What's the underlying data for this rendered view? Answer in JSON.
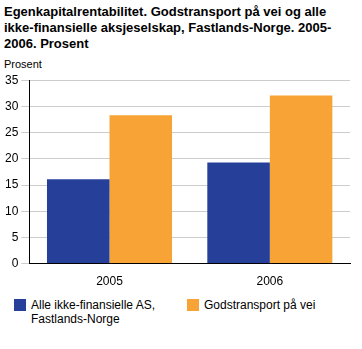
{
  "chart_data": {
    "type": "bar",
    "title": "Egenkapitalrentabilitet. Godstransport på vei og alle ikke-finansielle aksjeselskap, Fastlands-Norge. 2005-2006. Prosent",
    "y_label": "Prosent",
    "categories": [
      "2005",
      "2006"
    ],
    "series": [
      {
        "name": "Alle ikke-finansielle AS, Fastlands-Norge",
        "color": "#26409a",
        "values": [
          16.1,
          19.3
        ]
      },
      {
        "name": "Godstransport på vei",
        "color": "#f7a335",
        "values": [
          28.3,
          32.1
        ]
      }
    ],
    "ylim": [
      0,
      35
    ],
    "yticks": [
      0,
      5,
      10,
      15,
      20,
      25,
      30,
      35
    ],
    "grid": true,
    "legend": "bottom"
  }
}
